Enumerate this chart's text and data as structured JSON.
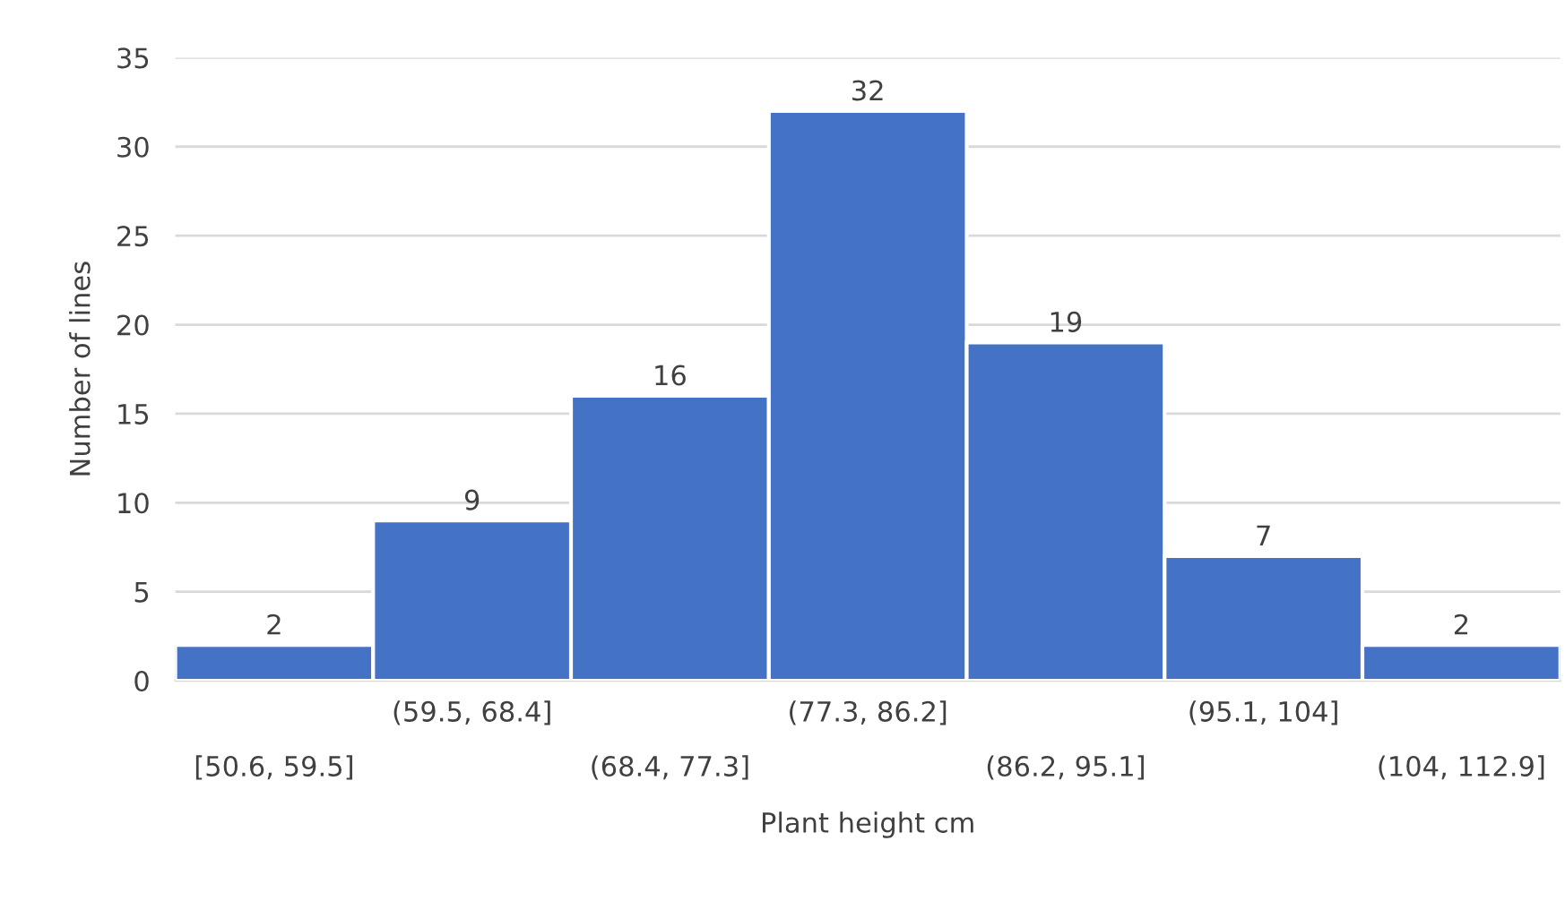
{
  "chart_data": {
    "type": "bar",
    "xlabel": "Plant height cm",
    "ylabel": "Number of lines",
    "categories": [
      "[50.6, 59.5]",
      "(59.5, 68.4]",
      "(68.4, 77.3]",
      "(77.3, 86.2]",
      "(86.2, 95.1]",
      "(95.1, 104]",
      "(104, 112.9]"
    ],
    "values": [
      2,
      9,
      16,
      32,
      19,
      7,
      2
    ],
    "color": "#4472c4",
    "ylim": [
      0,
      35
    ],
    "yticks": [
      0,
      5,
      10,
      15,
      20,
      25,
      30,
      35
    ],
    "grid": "y",
    "data_labels": true
  }
}
